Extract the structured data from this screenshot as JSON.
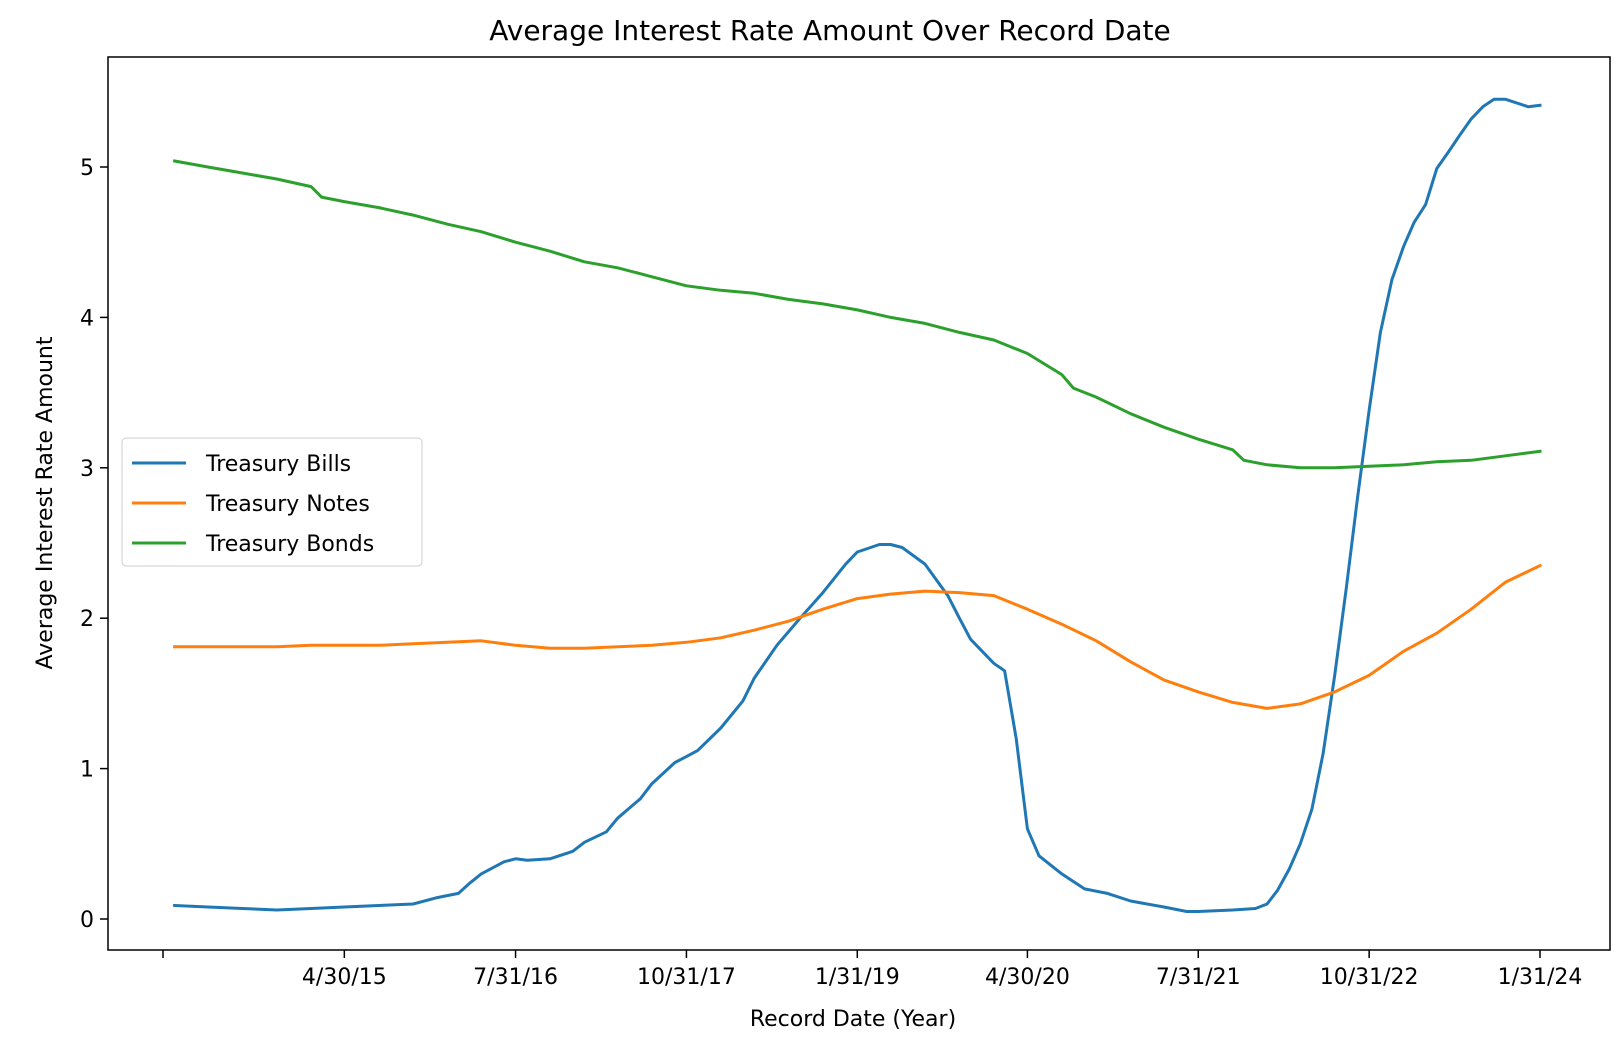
{
  "chart_data": {
    "type": "line",
    "title": "Average Interest Rate Amount Over Record Date",
    "xlabel": "Record Date (Year)",
    "ylabel": "Average Interest Rate Amount",
    "x_range": [
      "2013-12-31",
      "2024-01-31"
    ],
    "x_ticks": [
      {
        "date": "2013-12-31",
        "label": ""
      },
      {
        "date": "2015-04-30",
        "label": "4/30/15"
      },
      {
        "date": "2016-07-31",
        "label": "7/31/16"
      },
      {
        "date": "2017-10-31",
        "label": "10/31/17"
      },
      {
        "date": "2019-01-31",
        "label": "1/31/19"
      },
      {
        "date": "2020-04-30",
        "label": "4/30/20"
      },
      {
        "date": "2021-07-31",
        "label": "7/31/21"
      },
      {
        "date": "2022-10-31",
        "label": "10/31/22"
      },
      {
        "date": "2024-01-31",
        "label": "1/31/24"
      }
    ],
    "y_ticks": [
      0,
      1,
      2,
      3,
      4,
      5
    ],
    "ylim": [
      -0.24,
      5.72
    ],
    "legend_position": "center-left",
    "grid": false,
    "series": [
      {
        "name": "Treasury Bills",
        "color": "#1f77b4",
        "points": [
          [
            "2014-01-31",
            0.09
          ],
          [
            "2014-04-30",
            0.08
          ],
          [
            "2014-07-31",
            0.07
          ],
          [
            "2014-10-31",
            0.06
          ],
          [
            "2015-01-31",
            0.07
          ],
          [
            "2015-04-30",
            0.08
          ],
          [
            "2015-07-31",
            0.09
          ],
          [
            "2015-10-31",
            0.1
          ],
          [
            "2015-12-31",
            0.14
          ],
          [
            "2016-02-29",
            0.17
          ],
          [
            "2016-03-31",
            0.24
          ],
          [
            "2016-04-30",
            0.3
          ],
          [
            "2016-06-30",
            0.38
          ],
          [
            "2016-07-31",
            0.4
          ],
          [
            "2016-08-31",
            0.39
          ],
          [
            "2016-10-31",
            0.4
          ],
          [
            "2016-12-31",
            0.45
          ],
          [
            "2017-01-31",
            0.51
          ],
          [
            "2017-03-31",
            0.58
          ],
          [
            "2017-04-30",
            0.67
          ],
          [
            "2017-06-30",
            0.8
          ],
          [
            "2017-07-31",
            0.9
          ],
          [
            "2017-09-30",
            1.04
          ],
          [
            "2017-10-31",
            1.08
          ],
          [
            "2017-11-30",
            1.12
          ],
          [
            "2018-01-31",
            1.27
          ],
          [
            "2018-03-31",
            1.45
          ],
          [
            "2018-04-30",
            1.6
          ],
          [
            "2018-06-30",
            1.82
          ],
          [
            "2018-08-31",
            2.0
          ],
          [
            "2018-10-31",
            2.17
          ],
          [
            "2018-12-31",
            2.36
          ],
          [
            "2019-01-31",
            2.44
          ],
          [
            "2019-03-31",
            2.49
          ],
          [
            "2019-04-30",
            2.49
          ],
          [
            "2019-05-31",
            2.47
          ],
          [
            "2019-07-31",
            2.36
          ],
          [
            "2019-09-30",
            2.15
          ],
          [
            "2019-10-31",
            2.0
          ],
          [
            "2019-11-30",
            1.86
          ],
          [
            "2020-01-31",
            1.7
          ],
          [
            "2020-02-29",
            1.65
          ],
          [
            "2020-03-31",
            1.2
          ],
          [
            "2020-04-30",
            0.6
          ],
          [
            "2020-05-31",
            0.42
          ],
          [
            "2020-07-31",
            0.3
          ],
          [
            "2020-09-30",
            0.2
          ],
          [
            "2020-11-30",
            0.17
          ],
          [
            "2021-01-31",
            0.12
          ],
          [
            "2021-04-30",
            0.08
          ],
          [
            "2021-06-30",
            0.05
          ],
          [
            "2021-07-31",
            0.05
          ],
          [
            "2021-10-31",
            0.06
          ],
          [
            "2021-12-31",
            0.07
          ],
          [
            "2022-01-31",
            0.1
          ],
          [
            "2022-02-28",
            0.19
          ],
          [
            "2022-03-31",
            0.33
          ],
          [
            "2022-04-30",
            0.5
          ],
          [
            "2022-05-31",
            0.73
          ],
          [
            "2022-06-30",
            1.1
          ],
          [
            "2022-07-31",
            1.62
          ],
          [
            "2022-08-31",
            2.2
          ],
          [
            "2022-09-30",
            2.8
          ],
          [
            "2022-10-31",
            3.38
          ],
          [
            "2022-11-30",
            3.9
          ],
          [
            "2022-12-31",
            4.25
          ],
          [
            "2023-01-31",
            4.47
          ],
          [
            "2023-02-28",
            4.63
          ],
          [
            "2023-03-31",
            4.75
          ],
          [
            "2023-04-30",
            4.99
          ],
          [
            "2023-05-31",
            5.1
          ],
          [
            "2023-06-30",
            5.21
          ],
          [
            "2023-07-31",
            5.32
          ],
          [
            "2023-08-31",
            5.4
          ],
          [
            "2023-09-30",
            5.45
          ],
          [
            "2023-10-31",
            5.45
          ],
          [
            "2023-12-31",
            5.4
          ],
          [
            "2024-01-31",
            5.41
          ]
        ]
      },
      {
        "name": "Treasury Notes",
        "color": "#ff7f0e",
        "points": [
          [
            "2014-01-31",
            1.81
          ],
          [
            "2014-04-30",
            1.81
          ],
          [
            "2014-07-31",
            1.81
          ],
          [
            "2014-10-31",
            1.81
          ],
          [
            "2015-01-31",
            1.82
          ],
          [
            "2015-04-30",
            1.82
          ],
          [
            "2015-07-31",
            1.82
          ],
          [
            "2015-10-31",
            1.83
          ],
          [
            "2016-01-31",
            1.84
          ],
          [
            "2016-04-30",
            1.85
          ],
          [
            "2016-07-31",
            1.82
          ],
          [
            "2016-10-31",
            1.8
          ],
          [
            "2017-01-31",
            1.8
          ],
          [
            "2017-04-30",
            1.81
          ],
          [
            "2017-07-31",
            1.82
          ],
          [
            "2017-10-31",
            1.84
          ],
          [
            "2018-01-31",
            1.87
          ],
          [
            "2018-04-30",
            1.92
          ],
          [
            "2018-07-31",
            1.98
          ],
          [
            "2018-10-31",
            2.06
          ],
          [
            "2019-01-31",
            2.13
          ],
          [
            "2019-04-30",
            2.16
          ],
          [
            "2019-07-31",
            2.18
          ],
          [
            "2019-10-31",
            2.17
          ],
          [
            "2020-01-31",
            2.15
          ],
          [
            "2020-04-30",
            2.06
          ],
          [
            "2020-07-31",
            1.96
          ],
          [
            "2020-10-31",
            1.85
          ],
          [
            "2021-01-31",
            1.71
          ],
          [
            "2021-04-30",
            1.59
          ],
          [
            "2021-07-31",
            1.51
          ],
          [
            "2021-10-31",
            1.44
          ],
          [
            "2022-01-31",
            1.4
          ],
          [
            "2022-04-30",
            1.43
          ],
          [
            "2022-07-31",
            1.51
          ],
          [
            "2022-10-31",
            1.62
          ],
          [
            "2023-01-31",
            1.78
          ],
          [
            "2023-04-30",
            1.9
          ],
          [
            "2023-07-31",
            2.06
          ],
          [
            "2023-10-31",
            2.24
          ],
          [
            "2024-01-31",
            2.35
          ]
        ]
      },
      {
        "name": "Treasury Bonds",
        "color": "#2ca02c",
        "points": [
          [
            "2014-01-31",
            5.04
          ],
          [
            "2014-04-30",
            5.0
          ],
          [
            "2014-07-31",
            4.96
          ],
          [
            "2014-10-31",
            4.92
          ],
          [
            "2015-01-31",
            4.87
          ],
          [
            "2015-02-28",
            4.8
          ],
          [
            "2015-04-30",
            4.77
          ],
          [
            "2015-07-31",
            4.73
          ],
          [
            "2015-10-31",
            4.68
          ],
          [
            "2016-01-31",
            4.62
          ],
          [
            "2016-04-30",
            4.57
          ],
          [
            "2016-07-31",
            4.5
          ],
          [
            "2016-10-31",
            4.44
          ],
          [
            "2017-01-31",
            4.37
          ],
          [
            "2017-04-30",
            4.33
          ],
          [
            "2017-07-31",
            4.27
          ],
          [
            "2017-10-31",
            4.21
          ],
          [
            "2018-01-31",
            4.18
          ],
          [
            "2018-04-30",
            4.16
          ],
          [
            "2018-07-31",
            4.12
          ],
          [
            "2018-10-31",
            4.09
          ],
          [
            "2019-01-31",
            4.05
          ],
          [
            "2019-04-30",
            4.0
          ],
          [
            "2019-07-31",
            3.96
          ],
          [
            "2019-10-31",
            3.9
          ],
          [
            "2020-01-31",
            3.85
          ],
          [
            "2020-04-30",
            3.76
          ],
          [
            "2020-07-31",
            3.62
          ],
          [
            "2020-08-31",
            3.53
          ],
          [
            "2020-10-31",
            3.47
          ],
          [
            "2021-01-31",
            3.36
          ],
          [
            "2021-04-30",
            3.27
          ],
          [
            "2021-07-31",
            3.19
          ],
          [
            "2021-10-31",
            3.12
          ],
          [
            "2021-11-30",
            3.05
          ],
          [
            "2022-01-31",
            3.02
          ],
          [
            "2022-04-30",
            3.0
          ],
          [
            "2022-07-31",
            3.0
          ],
          [
            "2022-10-31",
            3.01
          ],
          [
            "2023-01-31",
            3.02
          ],
          [
            "2023-04-30",
            3.04
          ],
          [
            "2023-07-31",
            3.05
          ],
          [
            "2023-10-31",
            3.08
          ],
          [
            "2024-01-31",
            3.11
          ]
        ]
      }
    ]
  }
}
